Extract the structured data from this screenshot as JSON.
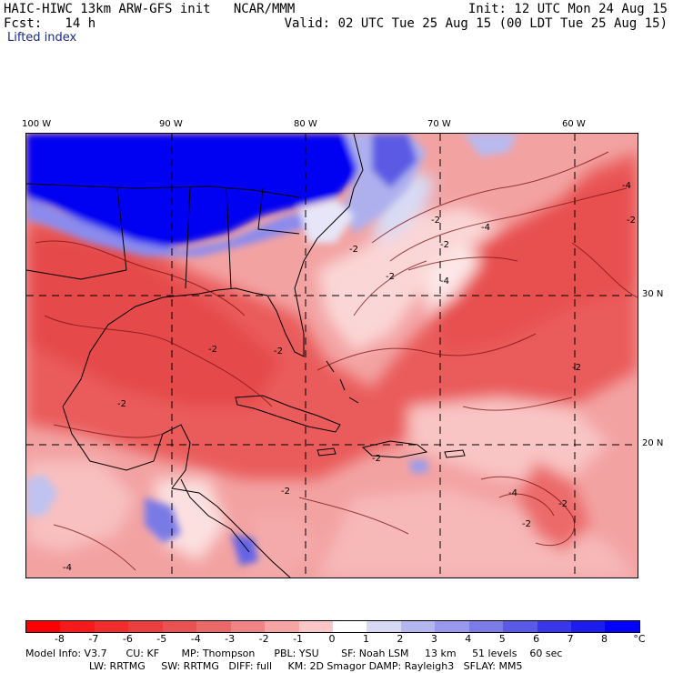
{
  "header": {
    "left_line1": "HAIC-HIWC 13km ARW-GFS init   NCAR/MMM",
    "left_line2": "Fcst:   14 h",
    "right_line1": "Init: 12 UTC Mon 24 Aug 15",
    "right_line2": "Valid: 02 UTC Tue 25 Aug 15 (00 LDT Tue 25 Aug 15)",
    "field_name": "Lifted index"
  },
  "map": {
    "lon_labels": [
      "100 W",
      "90 W",
      "80 W",
      "70 W",
      "60 W"
    ],
    "lat_labels": [
      "30 N",
      "20 N"
    ],
    "contour_labels": [
      "-2",
      "-2",
      "-2",
      "-2",
      "-4",
      "-4",
      "-2",
      "-2",
      "-2",
      "-4",
      "-2",
      "-2",
      "-4",
      "-2",
      "-2",
      "-2",
      "-2",
      "-4"
    ]
  },
  "colorbar": {
    "tick_labels": [
      "-8",
      "-7",
      "-6",
      "-5",
      "-4",
      "-3",
      "-2",
      "-1",
      "0",
      "1",
      "2",
      "3",
      "4",
      "5",
      "6",
      "7",
      "8"
    ],
    "units": "°C",
    "colors": [
      "#ff0000",
      "#f81a1a",
      "#f22c2c",
      "#ec3e3e",
      "#e85252",
      "#ea6868",
      "#f08484",
      "#f6a4a4",
      "#fac6c6",
      "#ffffff",
      "#d6d8f4",
      "#b4b6ee",
      "#9898ec",
      "#7c7ce8",
      "#5a5ae8",
      "#3838ea",
      "#1c1cee",
      "#0000ff"
    ]
  },
  "model_info": {
    "line1": "Model Info: V3.7      CU: KF       MP: Thompson      PBL: YSU       SF: Noah LSM     13 km     51 levels    60 sec",
    "line2": "LW: RRTMG     SW: RRTMG   DIFF: full     KM: 2D Smagor DAMP: Rayleigh3   SFLAY: MM5"
  }
}
